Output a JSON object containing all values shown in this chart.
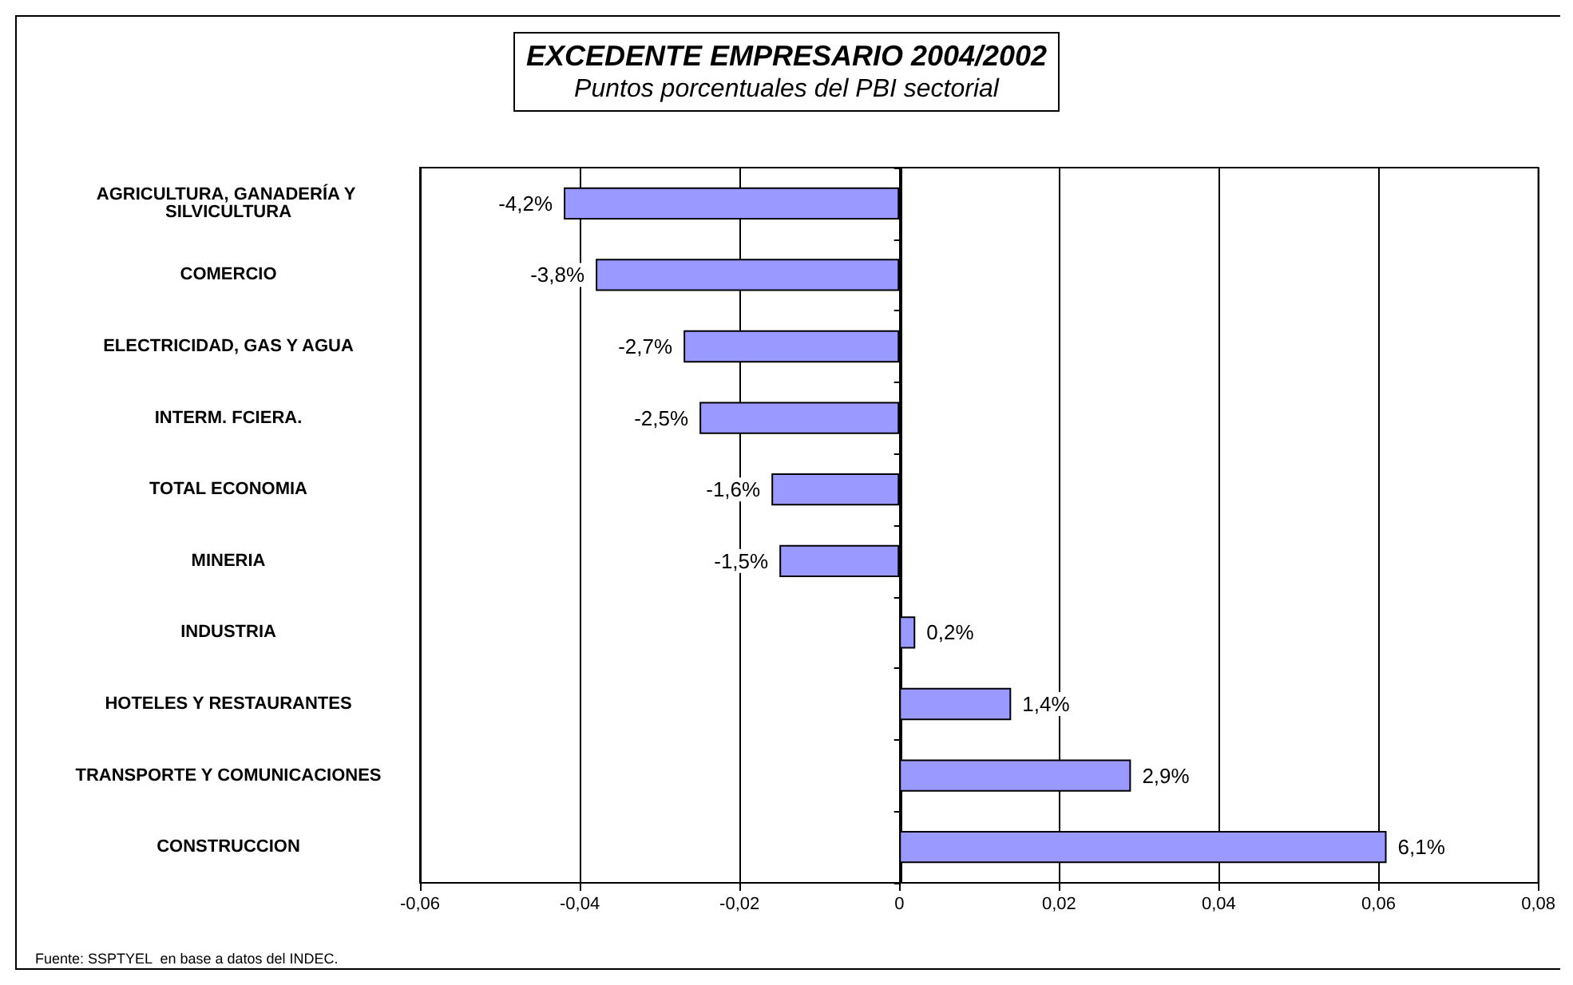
{
  "chart_data": {
    "type": "bar",
    "orientation": "horizontal",
    "title": "EXCEDENTE EMPRESARIO 2004/2002",
    "subtitle": "Puntos porcentuales del PBI sectorial",
    "categories": [
      "AGRICULTURA, GANADERÍA Y SILVICULTURA",
      "COMERCIO",
      "ELECTRICIDAD, GAS Y AGUA",
      "INTERM. FCIERA.",
      "TOTAL ECONOMIA",
      "MINERIA",
      "INDUSTRIA",
      "HOTELES Y RESTAURANTES",
      "TRANSPORTE Y COMUNICACIONES",
      "CONSTRUCCION"
    ],
    "values": [
      -0.042,
      -0.038,
      -0.027,
      -0.025,
      -0.016,
      -0.015,
      0.002,
      0.014,
      0.029,
      0.061
    ],
    "value_labels": [
      "-4,2%",
      "-3,8%",
      "-2,7%",
      "-2,5%",
      "-1,6%",
      "-1,5%",
      "0,2%",
      "1,4%",
      "2,9%",
      "6,1%"
    ],
    "color": "#9999ff",
    "xlim": [
      -0.06,
      0.08
    ],
    "xticks": [
      {
        "value": -0.06,
        "label": "-0,06"
      },
      {
        "value": -0.04,
        "label": "-0,04"
      },
      {
        "value": -0.02,
        "label": "-0,02"
      },
      0,
      {
        "value": 0.02,
        "label": "0,02"
      },
      {
        "value": 0.04,
        "label": "0,04"
      },
      {
        "value": 0.06,
        "label": "0,06"
      },
      {
        "value": 0.08,
        "label": "0,08"
      }
    ],
    "grid": "x",
    "annotations": [
      "Fuente: SSPTYEL  en base a datos del INDEC."
    ]
  }
}
